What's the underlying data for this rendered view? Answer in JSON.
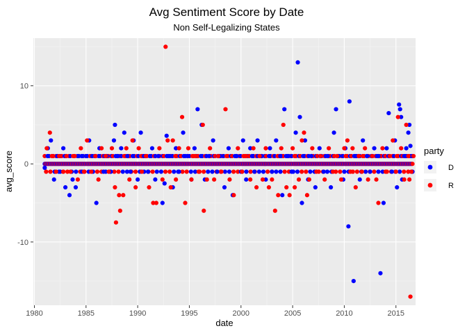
{
  "chart_data": {
    "type": "scatter",
    "title": "Avg Sentiment Score by Date",
    "subtitle": "Non Self-Legalizing States",
    "xlabel": "date",
    "ylabel": "avg_score",
    "xlim": [
      1979.9,
      2016.9
    ],
    "ylim": [
      -18.1,
      16.1
    ],
    "xticks": [
      1980,
      1985,
      1990,
      1995,
      2000,
      2005,
      2010,
      2015
    ],
    "xtick_labels": [
      "1980",
      "1985",
      "1990",
      "1995",
      "2000",
      "2005",
      "2010",
      "2015"
    ],
    "yticks": [
      -10,
      0,
      10
    ],
    "ytick_labels": [
      "-10",
      "0",
      "10"
    ],
    "grid": true,
    "background": "#ebebeb",
    "legend": {
      "title": "party",
      "placement": "right",
      "entries": [
        {
          "label": "D",
          "color": "#0000ff"
        },
        {
          "label": "R",
          "color": "#ff0000"
        }
      ]
    },
    "series": [
      {
        "name": "D",
        "color": "#0000ff",
        "points": [
          [
            1981.0,
            -0.5
          ],
          [
            1981.3,
            2.0
          ],
          [
            1981.6,
            3.0
          ],
          [
            1981.9,
            -2.0
          ],
          [
            1982.2,
            1.0
          ],
          [
            1982.5,
            -1.0
          ],
          [
            1982.8,
            2.0
          ],
          [
            1983.0,
            -3.0
          ],
          [
            1983.4,
            -4.0
          ],
          [
            1983.7,
            -2.0
          ],
          [
            1984.0,
            -3.0
          ],
          [
            1984.3,
            1.0
          ],
          [
            1984.6,
            -1.0
          ],
          [
            1985.0,
            1.0
          ],
          [
            1985.3,
            3.0
          ],
          [
            1985.6,
            1.0
          ],
          [
            1986.0,
            -5.0
          ],
          [
            1986.3,
            2.0
          ],
          [
            1986.7,
            -1.0
          ],
          [
            1987.0,
            1.0
          ],
          [
            1987.4,
            -1.0
          ],
          [
            1987.7,
            3.0
          ],
          [
            1987.8,
            5.0
          ],
          [
            1988.1,
            1.0
          ],
          [
            1988.4,
            2.0
          ],
          [
            1988.7,
            4.0
          ],
          [
            1989.0,
            1.0
          ],
          [
            1989.3,
            -1.0
          ],
          [
            1989.6,
            3.0
          ],
          [
            1990.0,
            -2.0
          ],
          [
            1990.3,
            4.0
          ],
          [
            1990.6,
            1.0
          ],
          [
            1991.0,
            -1.0
          ],
          [
            1991.4,
            2.0
          ],
          [
            1991.7,
            -2.0
          ],
          [
            1992.0,
            1.0
          ],
          [
            1992.4,
            -5.0
          ],
          [
            1992.6,
            -2.5
          ],
          [
            1992.8,
            3.6
          ],
          [
            1993.1,
            1.0
          ],
          [
            1993.4,
            -3.0
          ],
          [
            1993.7,
            2.0
          ],
          [
            1994.0,
            -1.0
          ],
          [
            1994.4,
            4.0
          ],
          [
            1994.8,
            1.0
          ],
          [
            1995.2,
            -2.0
          ],
          [
            1995.5,
            2.0
          ],
          [
            1995.8,
            7.0
          ],
          [
            1996.2,
            5.0
          ],
          [
            1996.5,
            -2.0
          ],
          [
            1996.9,
            1.0
          ],
          [
            1997.3,
            3.0
          ],
          [
            1997.7,
            -1.0
          ],
          [
            1998.0,
            1.0
          ],
          [
            1998.4,
            -3.0
          ],
          [
            1998.8,
            2.0
          ],
          [
            1999.2,
            -4.0
          ],
          [
            1999.6,
            1.0
          ],
          [
            2000.0,
            -1.0
          ],
          [
            2000.2,
            3.0
          ],
          [
            2000.5,
            -2.0
          ],
          [
            2000.9,
            2.0
          ],
          [
            2001.3,
            -1.0
          ],
          [
            2001.6,
            3.0
          ],
          [
            2002.0,
            1.0
          ],
          [
            2002.4,
            -2.0
          ],
          [
            2002.8,
            2.0
          ],
          [
            2003.0,
            -1.0
          ],
          [
            2003.4,
            3.0
          ],
          [
            2003.8,
            1.0
          ],
          [
            2004.0,
            -4.0
          ],
          [
            2004.2,
            7.0
          ],
          [
            2004.6,
            1.0
          ],
          [
            2004.9,
            -1.0
          ],
          [
            2005.3,
            4.0
          ],
          [
            2005.5,
            13.0
          ],
          [
            2005.7,
            6.0
          ],
          [
            2005.9,
            -5.0
          ],
          [
            2006.2,
            3.0
          ],
          [
            2006.5,
            -2.0
          ],
          [
            2006.8,
            1.0
          ],
          [
            2007.2,
            -3.0
          ],
          [
            2007.6,
            2.0
          ],
          [
            2008.0,
            -1.0
          ],
          [
            2008.4,
            1.0
          ],
          [
            2008.7,
            -3.0
          ],
          [
            2009.0,
            4.0
          ],
          [
            2009.2,
            7.0
          ],
          [
            2009.5,
            1.0
          ],
          [
            2009.9,
            -2.0
          ],
          [
            2010.1,
            2.0
          ],
          [
            2010.4,
            -8.0
          ],
          [
            2010.5,
            8.0
          ],
          [
            2010.9,
            -15.0
          ],
          [
            2011.2,
            1.0
          ],
          [
            2011.5,
            -2.0
          ],
          [
            2011.8,
            3.0
          ],
          [
            2012.2,
            1.0
          ],
          [
            2012.5,
            -1.0
          ],
          [
            2012.9,
            2.0
          ],
          [
            2013.3,
            1.0
          ],
          [
            2013.5,
            -14.0
          ],
          [
            2013.8,
            -5.0
          ],
          [
            2014.1,
            2.0
          ],
          [
            2014.3,
            6.5
          ],
          [
            2014.6,
            -1.0
          ],
          [
            2014.9,
            3.0
          ],
          [
            2015.1,
            -3.0
          ],
          [
            2015.3,
            7.6
          ],
          [
            2015.4,
            7.0
          ],
          [
            2015.5,
            6.0
          ],
          [
            2015.6,
            -2.0
          ],
          [
            2015.8,
            1.0
          ],
          [
            2016.0,
            2.0
          ],
          [
            2016.2,
            4.0
          ],
          [
            2016.3,
            5.0
          ],
          [
            2016.4,
            2.3
          ],
          [
            2016.5,
            -1.0
          ],
          [
            2016.6,
            1.0
          ]
        ]
      },
      {
        "name": "R",
        "color": "#ff0000",
        "points": [
          [
            1981.2,
            2.0
          ],
          [
            1981.5,
            4.0
          ],
          [
            1981.8,
            1.0
          ],
          [
            1982.1,
            -1.0
          ],
          [
            1982.4,
            1.0
          ],
          [
            1982.8,
            -1.0
          ],
          [
            1983.1,
            1.0
          ],
          [
            1983.5,
            -1.0
          ],
          [
            1983.9,
            1.0
          ],
          [
            1984.2,
            -2.0
          ],
          [
            1984.5,
            2.0
          ],
          [
            1984.8,
            -1.0
          ],
          [
            1985.1,
            3.0
          ],
          [
            1985.5,
            -1.0
          ],
          [
            1985.9,
            1.0
          ],
          [
            1986.2,
            -2.0
          ],
          [
            1986.5,
            2.0
          ],
          [
            1986.9,
            1.0
          ],
          [
            1987.2,
            -1.0
          ],
          [
            1987.5,
            2.0
          ],
          [
            1987.8,
            -3.0
          ],
          [
            1987.9,
            -7.5
          ],
          [
            1988.2,
            -4.0
          ],
          [
            1988.3,
            -6.0
          ],
          [
            1988.6,
            -4.0
          ],
          [
            1988.9,
            2.0
          ],
          [
            1989.2,
            -2.0
          ],
          [
            1989.5,
            3.0
          ],
          [
            1989.8,
            -3.0
          ],
          [
            1990.1,
            2.0
          ],
          [
            1990.4,
            -1.0
          ],
          [
            1990.8,
            1.0
          ],
          [
            1991.1,
            -3.0
          ],
          [
            1991.5,
            -5.0
          ],
          [
            1991.8,
            -5.0
          ],
          [
            1992.1,
            2.0
          ],
          [
            1992.4,
            -2.0
          ],
          [
            1992.7,
            15.0
          ],
          [
            1992.9,
            3.0
          ],
          [
            1993.2,
            -3.0
          ],
          [
            1993.4,
            3.0
          ],
          [
            1993.7,
            -2.0
          ],
          [
            1994.0,
            2.0
          ],
          [
            1994.3,
            6.0
          ],
          [
            1994.6,
            -5.0
          ],
          [
            1994.9,
            2.0
          ],
          [
            1995.2,
            -2.0
          ],
          [
            1995.6,
            1.0
          ],
          [
            1995.9,
            -1.0
          ],
          [
            1996.3,
            5.0
          ],
          [
            1996.4,
            -6.0
          ],
          [
            1996.7,
            -2.0
          ],
          [
            1997.0,
            2.0
          ],
          [
            1997.4,
            -2.0
          ],
          [
            1997.8,
            1.0
          ],
          [
            1998.1,
            -1.0
          ],
          [
            1998.5,
            7.0
          ],
          [
            1998.9,
            -2.0
          ],
          [
            1999.3,
            -4.0
          ],
          [
            1999.7,
            2.0
          ],
          [
            2000.1,
            -1.0
          ],
          [
            2000.5,
            1.0
          ],
          [
            2000.9,
            -2.0
          ],
          [
            2001.2,
            2.0
          ],
          [
            2001.5,
            -3.0
          ],
          [
            2001.8,
            1.0
          ],
          [
            2002.1,
            -2.0
          ],
          [
            2002.4,
            2.0
          ],
          [
            2002.7,
            -3.0
          ],
          [
            2003.0,
            -2.0
          ],
          [
            2003.3,
            -6.0
          ],
          [
            2003.6,
            -4.0
          ],
          [
            2003.9,
            2.0
          ],
          [
            2004.1,
            5.0
          ],
          [
            2004.4,
            -3.0
          ],
          [
            2004.7,
            -4.0
          ],
          [
            2005.0,
            2.0
          ],
          [
            2005.2,
            -3.0
          ],
          [
            2005.6,
            -2.0
          ],
          [
            2005.9,
            3.0
          ],
          [
            2006.1,
            4.0
          ],
          [
            2006.4,
            -4.0
          ],
          [
            2006.6,
            -2.0
          ],
          [
            2006.9,
            2.0
          ],
          [
            2007.3,
            -1.0
          ],
          [
            2007.7,
            1.0
          ],
          [
            2008.1,
            -2.0
          ],
          [
            2008.5,
            2.0
          ],
          [
            2008.9,
            -1.0
          ],
          [
            2009.3,
            1.0
          ],
          [
            2009.7,
            -2.0
          ],
          [
            2010.0,
            2.0
          ],
          [
            2010.3,
            3.0
          ],
          [
            2010.6,
            -1.0
          ],
          [
            2010.8,
            2.0
          ],
          [
            2011.1,
            -3.0
          ],
          [
            2011.4,
            1.0
          ],
          [
            2011.7,
            -1.0
          ],
          [
            2012.0,
            2.0
          ],
          [
            2012.3,
            -2.0
          ],
          [
            2012.7,
            1.0
          ],
          [
            2013.1,
            -2.0
          ],
          [
            2013.3,
            -5.0
          ],
          [
            2013.7,
            2.0
          ],
          [
            2014.0,
            -1.0
          ],
          [
            2014.4,
            1.0
          ],
          [
            2014.7,
            3.0
          ],
          [
            2015.0,
            -1.0
          ],
          [
            2015.2,
            6.0
          ],
          [
            2015.5,
            2.0
          ],
          [
            2015.8,
            -2.0
          ],
          [
            2016.0,
            5.0
          ],
          [
            2016.2,
            1.0
          ],
          [
            2016.3,
            -2.0
          ],
          [
            2016.4,
            -17.0
          ],
          [
            2016.5,
            -1.0
          ],
          [
            2016.7,
            1.0
          ]
        ]
      }
    ],
    "baseline": {
      "note": "dense band of points at avg_score 0 for both parties spanning 1981–2016.6",
      "y": 0,
      "x_start": 1981.0,
      "x_end": 2016.6,
      "colors": [
        "#0000ff",
        "#ff0000"
      ]
    }
  }
}
